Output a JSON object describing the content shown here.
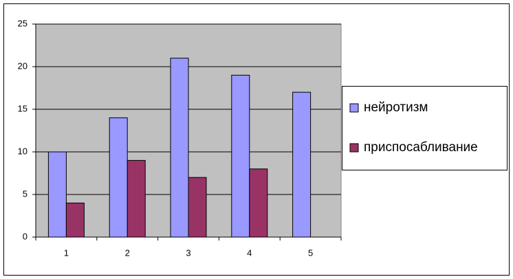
{
  "chart_data": {
    "type": "bar",
    "categories": [
      "1",
      "2",
      "3",
      "4",
      "5"
    ],
    "series": [
      {
        "name": "нейротизм",
        "color": "#9999ff",
        "values": [
          10,
          14,
          21,
          19,
          17
        ]
      },
      {
        "name": "приспосабливание",
        "color": "#993366",
        "values": [
          4,
          9,
          7,
          8,
          null
        ]
      }
    ],
    "ylim": [
      0,
      25
    ],
    "yticks": [
      0,
      5,
      10,
      15,
      20,
      25
    ],
    "grid": true,
    "legend": "right"
  }
}
